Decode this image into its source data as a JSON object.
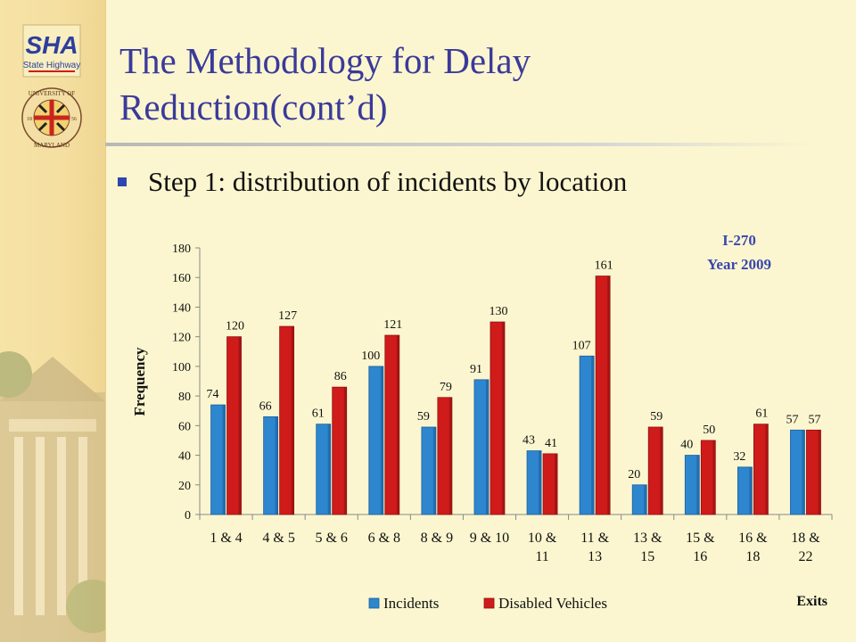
{
  "slide": {
    "title_line1": "The Methodology for Delay",
    "title_line2": "Reduction(cont’d)",
    "bullet": "Step 1: distribution of incidents by location"
  },
  "logos": {
    "sha_text": "SHA",
    "sha_sub": "State Highway",
    "umd_text_top": "UNIVERSITY OF",
    "umd_text_bottom": "MARYLAND",
    "umd_year_left": "18",
    "umd_year_right": "56"
  },
  "colors": {
    "title": "#3a3a9a",
    "incidents": "#2e86cf",
    "disabled_vehicles": "#d01b1b",
    "annotation": "#3a46b0"
  },
  "chart_data": {
    "type": "bar",
    "title": "",
    "annotation_line1": "I-270",
    "annotation_line2": "Year 2009",
    "xlabel": "Exits",
    "ylabel": "Frequency",
    "ylim": [
      0,
      180
    ],
    "yticks": [
      0,
      20,
      40,
      60,
      80,
      100,
      120,
      140,
      160,
      180
    ],
    "grid": false,
    "legend_position": "bottom",
    "categories": [
      [
        "1 & 4"
      ],
      [
        "4 & 5"
      ],
      [
        "5 & 6"
      ],
      [
        "6 & 8"
      ],
      [
        "8 & 9"
      ],
      [
        "9 & 10"
      ],
      [
        "10 &",
        "11"
      ],
      [
        "11 &",
        "13"
      ],
      [
        "13 &",
        "15"
      ],
      [
        "15 &",
        "16"
      ],
      [
        "16 &",
        "18"
      ],
      [
        "18 &",
        "22"
      ]
    ],
    "series": [
      {
        "name": "Incidents",
        "values": [
          74,
          66,
          61,
          100,
          59,
          91,
          43,
          107,
          20,
          40,
          32,
          57
        ]
      },
      {
        "name": "Disabled Vehicles",
        "values": [
          120,
          127,
          86,
          121,
          79,
          130,
          41,
          161,
          59,
          50,
          61,
          57
        ]
      }
    ]
  }
}
